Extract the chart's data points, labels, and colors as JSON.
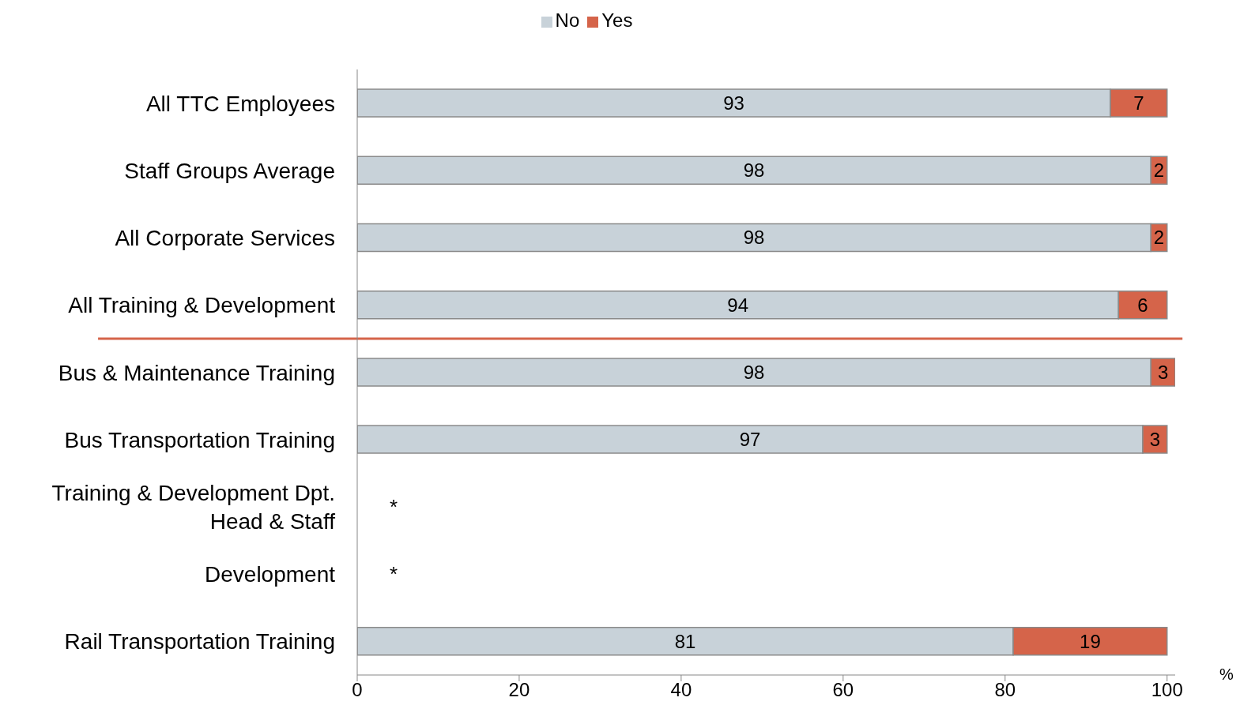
{
  "chart_data": {
    "type": "bar",
    "orientation": "horizontal",
    "stacked": true,
    "categories": [
      "All TTC Employees",
      "Staff Groups Average",
      "All Corporate Services",
      "All Training & Development",
      "Bus & Maintenance Training",
      "Bus Transportation Training",
      "Training & Development Dpt. Head & Staff",
      "Development",
      "Rail Transportation Training"
    ],
    "series": [
      {
        "name": "No",
        "color": "#c8d2d9",
        "values": [
          93,
          98,
          98,
          94,
          98,
          97,
          null,
          null,
          81
        ]
      },
      {
        "name": "Yes",
        "color": "#d5644a",
        "values": [
          7,
          2,
          2,
          6,
          3,
          3,
          null,
          null,
          19
        ]
      }
    ],
    "xlim": [
      0,
      101
    ],
    "xticks": [
      0,
      20,
      40,
      60,
      80,
      100
    ],
    "xlabel": "%",
    "data_labels": true,
    "legend": "top",
    "grid": false,
    "annotations": [
      "*",
      "*"
    ],
    "ref_lines": [
      {
        "axis": "y",
        "value": "All Training & Development",
        "color": "#d5644a"
      }
    ]
  }
}
